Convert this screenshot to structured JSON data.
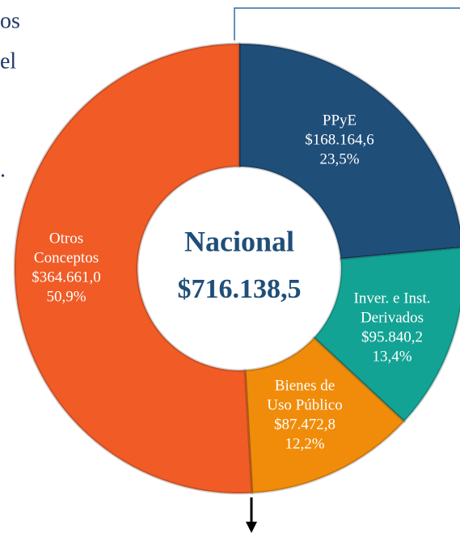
{
  "fragments": [
    "os",
    "el",
    "."
  ],
  "chart_data": {
    "type": "donut",
    "center_title": "Nacional",
    "total": 716138.5,
    "total_label": "$716.138,5",
    "categories": [
      [
        "PPyE"
      ],
      [
        "Inver. e Inst.",
        "Derivados"
      ],
      [
        "Bienes de",
        "Uso Público"
      ],
      [
        "Otros",
        "Conceptos"
      ]
    ],
    "amounts": [
      168164.6,
      95840.2,
      87472.8,
      364661.0
    ],
    "amount_labels": [
      "$168.164,6",
      "$95.840,2",
      "$87.472,8",
      "$364.661,0"
    ],
    "values": [
      23.5,
      13.4,
      12.2,
      50.9
    ],
    "value_labels": [
      "23,5%",
      "13,4%",
      "12,2%",
      "50,9%"
    ],
    "colors": [
      "#1f4e79",
      "#13a394",
      "#f08c0a",
      "#f05b26"
    ]
  }
}
